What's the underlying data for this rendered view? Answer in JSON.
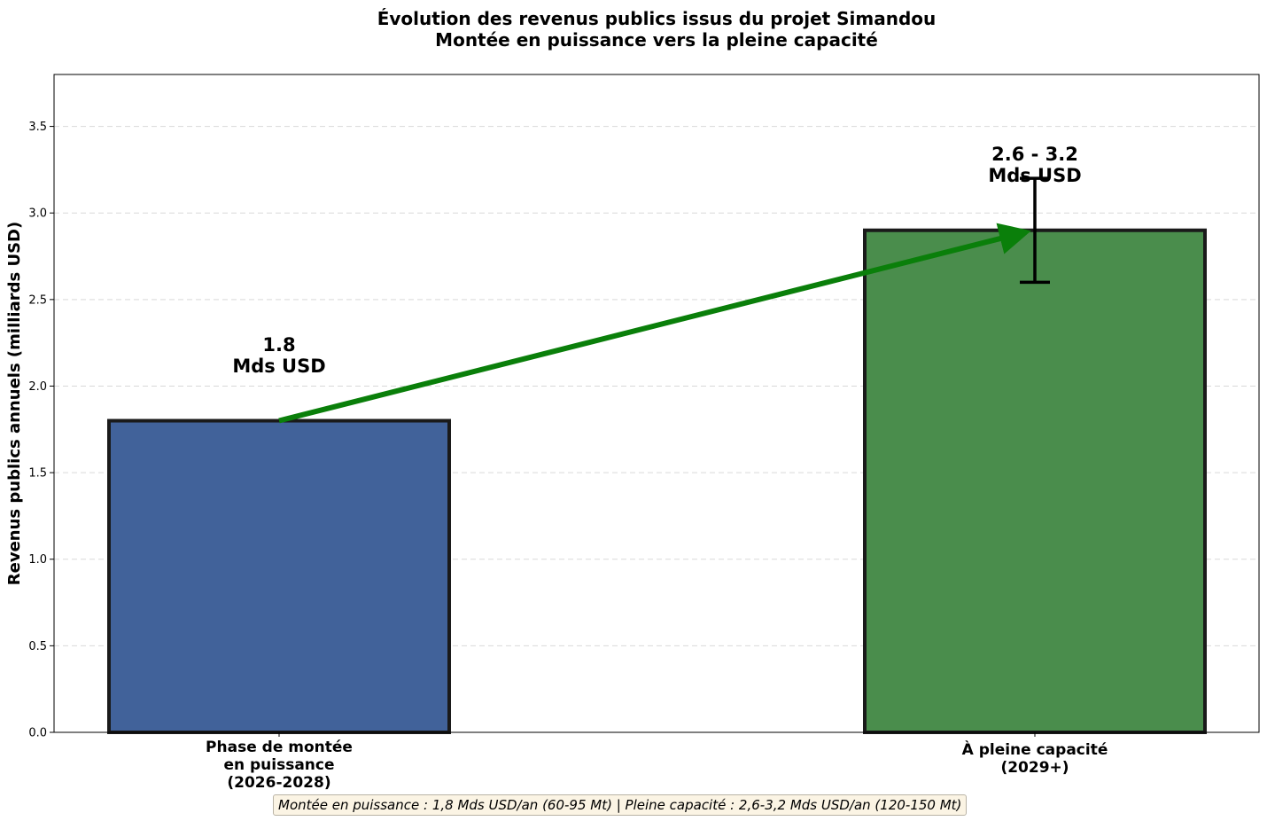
{
  "chart_data": {
    "type": "bar",
    "title": "Évolution des revenus publics issus du projet Simandou",
    "subtitle": "Montée en puissance vers la pleine capacité",
    "ylabel": "Revenus publics annuels (milliards USD)",
    "xlabel": "",
    "ylim": [
      0,
      3.8
    ],
    "yticks": [
      "0.0",
      "0.5",
      "1.0",
      "1.5",
      "2.0",
      "2.5",
      "3.0",
      "3.5"
    ],
    "grid": "horizontal dashed",
    "categories": [
      [
        "Phase de montée",
        "en puissance",
        "(2026-2028)"
      ],
      [
        "À pleine capacité",
        "(2029+)"
      ]
    ],
    "values": [
      1.8,
      2.9
    ],
    "error_ranges": [
      null,
      [
        2.6,
        3.2
      ]
    ],
    "data_labels": [
      [
        "1.8",
        "Mds USD"
      ],
      [
        "2.6 - 3.2",
        "Mds USD"
      ]
    ],
    "colors": [
      "#41629a",
      "#4a8d4c"
    ],
    "arrow": {
      "from": 1.8,
      "to": 2.9,
      "color": "#0a7f0a"
    },
    "footnote_left": "Montée en puissance : 1,8 Mds USD/an (60-95 Mt) ",
    "footnote_sep": "|",
    "footnote_right": " Pleine capacité : 2,6-3,2 Mds USD/an (120-150 Mt)"
  }
}
